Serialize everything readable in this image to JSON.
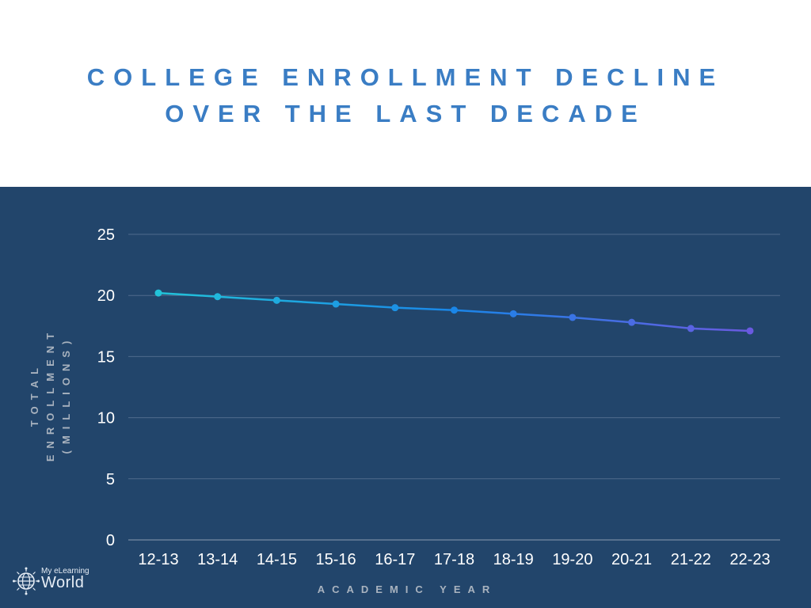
{
  "title_lines": [
    "COLLEGE ENROLLMENT DECLINE",
    "OVER THE LAST DECADE"
  ],
  "brand": {
    "small": "My eLearning",
    "big": "World",
    "icon": "globe-icon"
  },
  "colors": {
    "title": "#3a7dc4",
    "panel": "#22456b",
    "grid": "#4f6b8c",
    "tick_text": "#ffffff",
    "axis_title": "#a9b3bf",
    "line_start": "#22c3d9",
    "line_mid": "#1a86e8",
    "line_end": "#6a5ae0"
  },
  "chart_data": {
    "type": "line",
    "title": "COLLEGE ENROLLMENT DECLINE OVER THE LAST DECADE",
    "xlabel": "ACADEMIC YEAR",
    "ylabel_lines": [
      "TOTAL",
      "ENROLLMENT",
      "(MILLIONS)"
    ],
    "categories": [
      "12-13",
      "13-14",
      "14-15",
      "15-16",
      "16-17",
      "17-18",
      "18-19",
      "19-20",
      "20-21",
      "21-22",
      "22-23"
    ],
    "series": [
      {
        "name": "Total Enrollment (Millions)",
        "values": [
          20.2,
          19.9,
          19.6,
          19.3,
          19.0,
          18.8,
          18.5,
          18.2,
          17.8,
          17.3,
          17.1
        ]
      }
    ],
    "ylim": [
      0,
      25
    ],
    "yticks": [
      0,
      5,
      10,
      15,
      20,
      25
    ],
    "grid": true,
    "legend": "none"
  }
}
